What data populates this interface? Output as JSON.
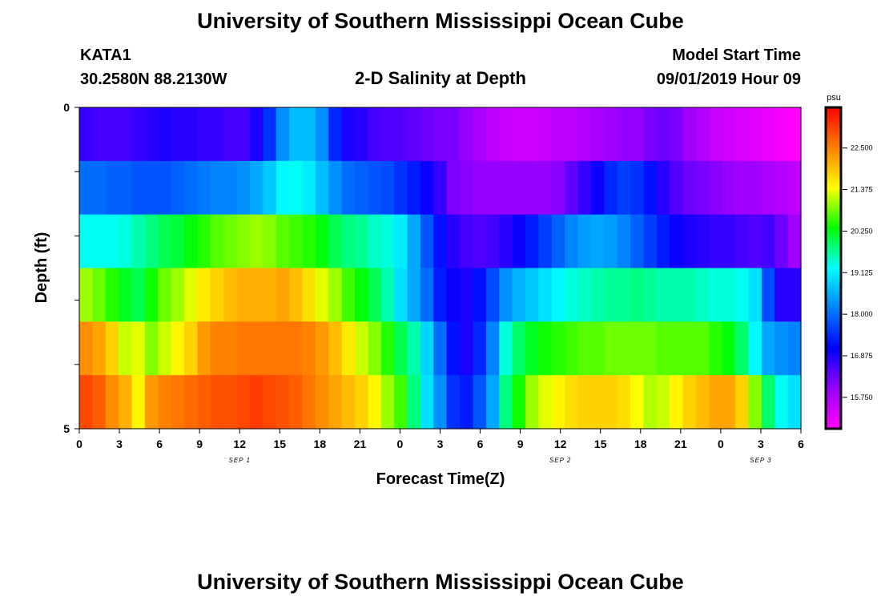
{
  "title": "University of Southern Mississippi Ocean Cube",
  "footer_title": "University of Southern Mississippi Ocean Cube",
  "station": {
    "name": "KATA1",
    "coords": "30.2580N 88.2130W"
  },
  "subtitle": "2-D Salinity at Depth",
  "model_start": {
    "label": "Model Start Time",
    "value": "09/01/2019 Hour 09"
  },
  "chart_data": {
    "type": "heatmap",
    "title": "2-D Salinity at Depth",
    "xlabel": "Forecast Time(Z)",
    "ylabel": "Depth (ft)",
    "x_tick_labels": [
      "0",
      "3",
      "6",
      "9",
      "12",
      "15",
      "18",
      "21",
      "0",
      "3",
      "6",
      "9",
      "12",
      "15",
      "18",
      "21",
      "0",
      "3",
      "6"
    ],
    "date_labels": [
      {
        "text": "SEP 1",
        "hour": 12
      },
      {
        "text": "SEP 2",
        "hour": 36
      },
      {
        "text": "SEP 3",
        "hour": 51
      }
    ],
    "x_range_hours": [
      0,
      54
    ],
    "y_tick_labels": [
      "0",
      "",
      "",
      "",
      "",
      "5"
    ],
    "y_range": [
      0,
      5
    ],
    "rows": [
      {
        "depth": "0-1",
        "values": [
          16.7,
          16.6,
          16.6,
          16.6,
          16.7,
          16.8,
          16.9,
          16.8,
          16.8,
          16.7,
          16.7,
          16.6,
          16.6,
          16.9,
          17.5,
          18.3,
          18.7,
          18.7,
          18.3,
          17.4,
          16.9,
          16.8,
          16.6,
          16.5,
          16.5,
          16.4,
          16.3,
          16.2,
          16.2,
          16.0,
          15.8,
          15.6,
          15.5,
          15.4,
          15.4,
          15.5,
          15.6,
          15.6,
          15.7,
          15.8,
          15.9,
          16.0,
          16.0,
          16.2,
          16.3,
          16.2,
          15.9,
          15.7,
          15.5,
          15.4,
          15.3,
          15.2,
          15.1,
          15.0,
          14.9
        ]
      },
      {
        "depth": "1-2",
        "values": [
          18.0,
          18.0,
          17.9,
          17.9,
          17.8,
          17.8,
          17.8,
          17.9,
          18.0,
          18.1,
          18.2,
          18.2,
          18.3,
          18.5,
          18.8,
          19.2,
          19.3,
          19.1,
          18.7,
          18.3,
          18.0,
          17.9,
          17.8,
          17.7,
          17.5,
          17.3,
          17.0,
          16.7,
          16.2,
          16.1,
          16.0,
          16.0,
          16.0,
          16.0,
          16.0,
          16.0,
          16.1,
          16.4,
          16.7,
          17.0,
          17.4,
          17.6,
          17.5,
          17.2,
          16.8,
          16.5,
          16.3,
          16.2,
          16.1,
          16.0,
          15.9,
          15.9,
          15.8,
          15.7,
          15.6
        ]
      },
      {
        "depth": "2-3",
        "values": [
          19.3,
          19.3,
          19.3,
          19.4,
          19.6,
          19.8,
          20.0,
          20.1,
          20.3,
          20.5,
          20.7,
          20.8,
          20.9,
          21.0,
          20.9,
          20.7,
          20.6,
          20.5,
          20.3,
          20.0,
          19.8,
          19.7,
          19.5,
          19.4,
          19.1,
          18.5,
          17.8,
          17.2,
          16.8,
          16.6,
          16.5,
          16.6,
          16.8,
          17.0,
          17.3,
          17.6,
          17.9,
          18.2,
          18.4,
          18.5,
          18.4,
          18.2,
          17.9,
          17.6,
          17.3,
          17.0,
          16.9,
          16.8,
          16.7,
          16.7,
          16.6,
          16.5,
          16.6,
          16.3,
          15.9
        ]
      },
      {
        "depth": "3-4",
        "values": [
          21.0,
          20.8,
          20.5,
          20.2,
          20.0,
          20.4,
          20.8,
          21.0,
          21.3,
          21.6,
          21.8,
          22.0,
          22.1,
          22.1,
          22.1,
          22.2,
          22.0,
          21.7,
          21.3,
          21.0,
          20.6,
          20.3,
          20.0,
          19.6,
          19.0,
          18.5,
          18.0,
          17.3,
          17.0,
          16.9,
          17.2,
          17.7,
          18.3,
          18.6,
          18.8,
          19.0,
          19.2,
          19.4,
          19.5,
          19.6,
          19.7,
          19.7,
          19.8,
          19.7,
          19.6,
          19.6,
          19.6,
          19.5,
          19.4,
          19.4,
          19.3,
          19.0,
          17.7,
          16.8,
          16.8
        ]
      },
      {
        "depth": "4-5",
        "values": [
          22.4,
          22.2,
          21.8,
          21.2,
          21.3,
          20.9,
          21.2,
          21.5,
          21.8,
          22.3,
          22.5,
          22.5,
          22.6,
          22.6,
          22.6,
          22.6,
          22.6,
          22.5,
          22.3,
          22.0,
          21.6,
          21.2,
          20.9,
          20.5,
          20.0,
          19.6,
          18.9,
          18.0,
          17.2,
          16.9,
          17.4,
          18.2,
          19.4,
          19.9,
          20.2,
          20.4,
          20.5,
          20.6,
          20.7,
          20.7,
          20.8,
          20.8,
          20.8,
          20.8,
          20.7,
          20.7,
          20.7,
          20.7,
          20.5,
          20.3,
          19.9,
          19.2,
          18.5,
          18.3,
          18.2
        ]
      },
      {
        "depth": "5",
        "values": [
          23.0,
          22.8,
          22.4,
          22.1,
          21.5,
          22.3,
          22.5,
          22.6,
          22.7,
          22.8,
          22.9,
          22.9,
          23.0,
          23.1,
          23.0,
          22.9,
          22.8,
          22.6,
          22.4,
          22.2,
          22.0,
          21.8,
          21.5,
          21.0,
          20.6,
          19.8,
          19.0,
          18.3,
          17.5,
          17.3,
          17.8,
          18.5,
          19.8,
          20.4,
          21.0,
          21.3,
          21.5,
          21.7,
          21.8,
          21.8,
          21.8,
          21.7,
          21.4,
          21.1,
          21.2,
          21.5,
          21.8,
          22.0,
          22.2,
          22.2,
          21.8,
          20.9,
          19.9,
          19.3,
          19.0
        ]
      }
    ],
    "colorbar": {
      "unit": "psu",
      "min": 14.9,
      "max": 23.6,
      "ticks": [
        "22.500",
        "21.375",
        "20.250",
        "19.125",
        "18.000",
        "16.875",
        "15.750"
      ],
      "tick_values": [
        22.5,
        21.375,
        20.25,
        19.125,
        18.0,
        16.875,
        15.75
      ],
      "colormap": [
        "#ff00ff",
        "#9900ff",
        "#0000ff",
        "#0080ff",
        "#00ffff",
        "#00ff00",
        "#ffff00",
        "#ff8000",
        "#ff0000"
      ]
    }
  }
}
